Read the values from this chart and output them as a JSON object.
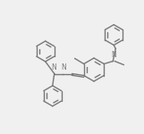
{
  "bg_color": "#f0f0f0",
  "line_color": "#787878",
  "lw": 1.0,
  "figsize": [
    1.61,
    1.5
  ],
  "dpi": 100,
  "xlim": [
    0,
    161
  ],
  "ylim": [
    0,
    150
  ]
}
